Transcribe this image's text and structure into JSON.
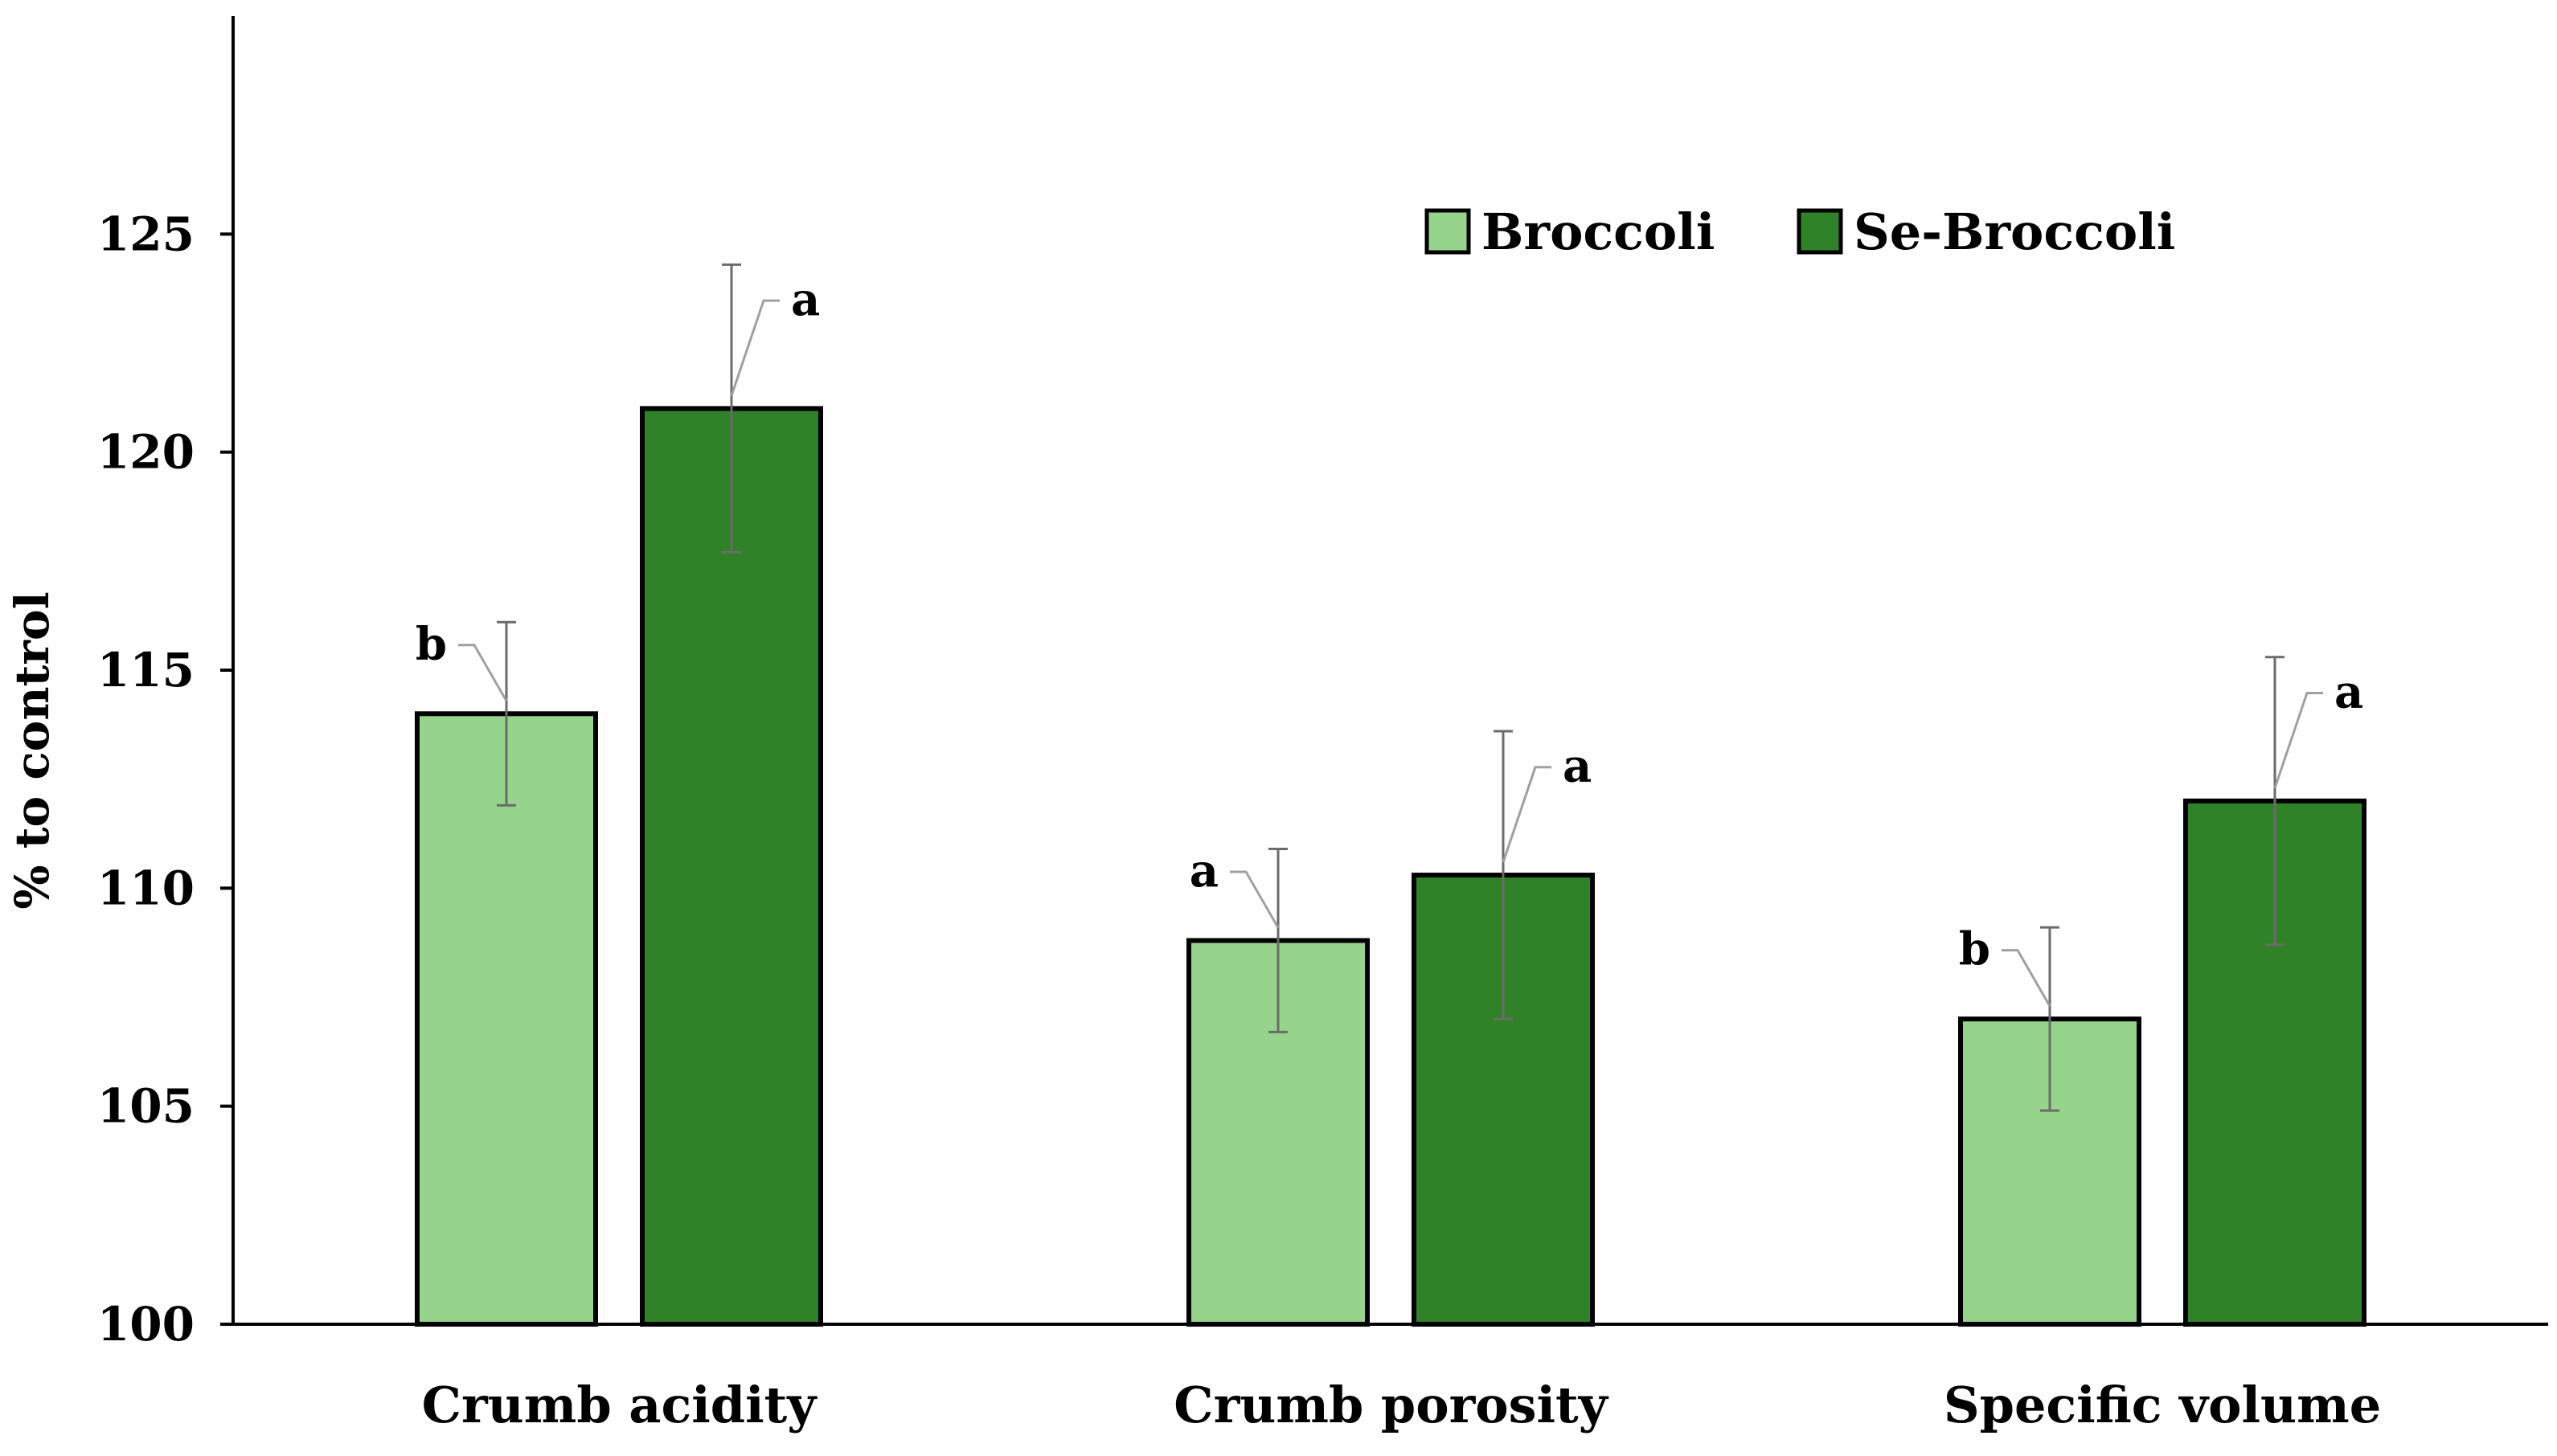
{
  "chart_data": {
    "type": "bar",
    "categories": [
      "Crumb acidity",
      "Crumb porosity",
      "Specific volume"
    ],
    "series": [
      {
        "name": "Broccoli",
        "values": [
          114.0,
          108.8,
          107.0
        ],
        "errors": [
          2.1,
          2.1,
          2.1
        ],
        "significance": [
          "b",
          "a",
          "b"
        ],
        "color": "#96d48b"
      },
      {
        "name": "Se-Broccoli",
        "values": [
          121.0,
          110.3,
          112.0
        ],
        "errors": [
          3.3,
          3.3,
          3.3
        ],
        "significance": [
          "a",
          "a",
          "a"
        ],
        "color": "#2f8228"
      }
    ],
    "ylabel": "% to control",
    "xlabel": "",
    "title": "",
    "ylim": [
      100,
      130
    ],
    "yticks": [
      100,
      105,
      110,
      115,
      120,
      125
    ],
    "grid": false,
    "legend_position": "top-right",
    "bar_edge_color": "#000000",
    "error_bar_color": "#6b6b6b"
  }
}
